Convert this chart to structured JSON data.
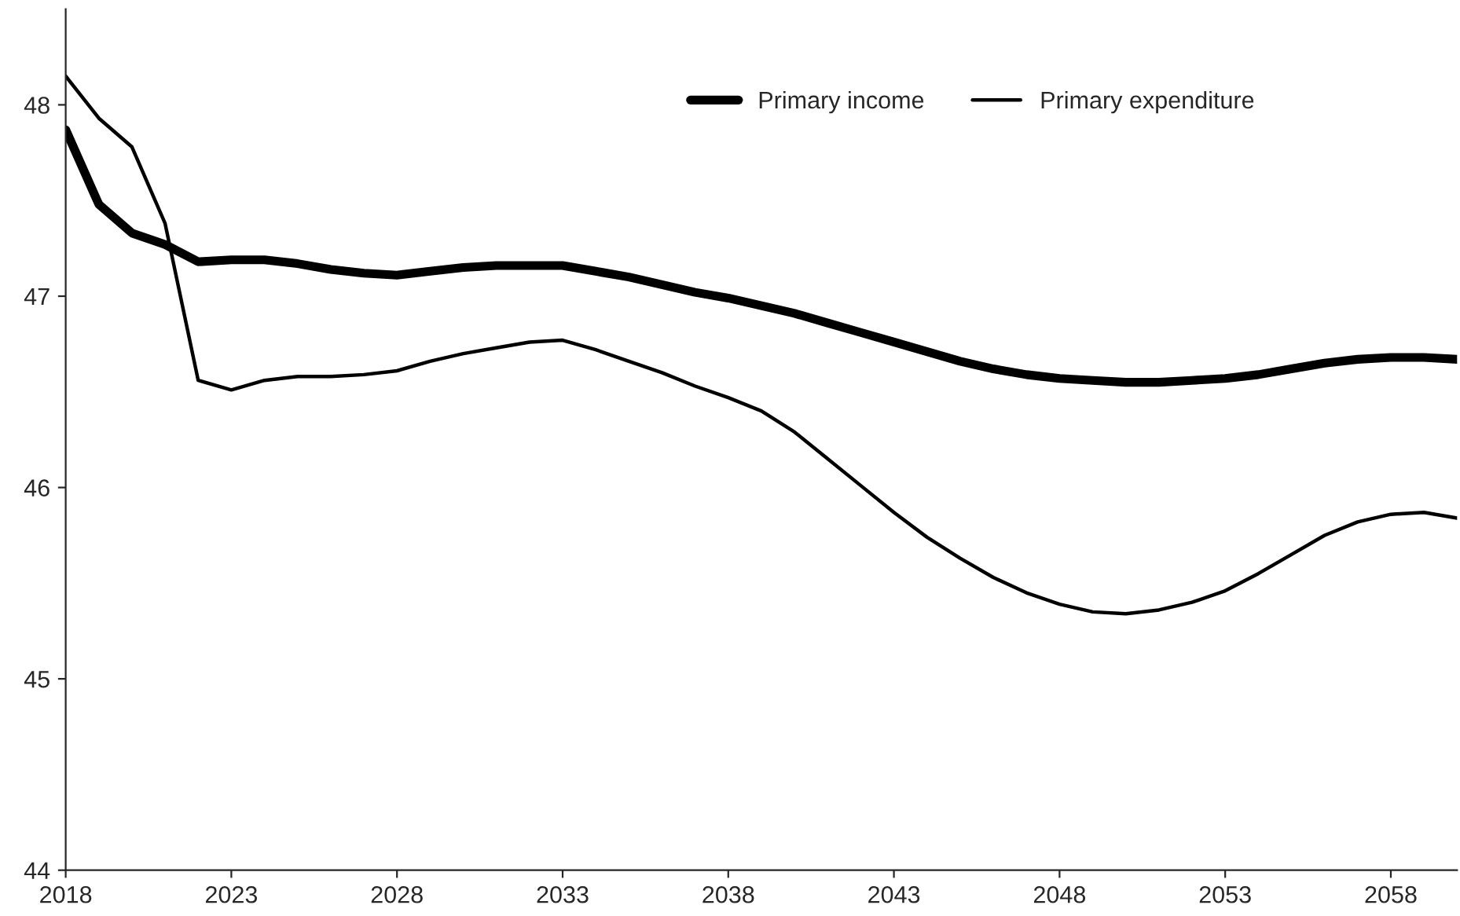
{
  "chart_data": {
    "type": "line",
    "x": [
      2018,
      2019,
      2020,
      2021,
      2022,
      2023,
      2024,
      2025,
      2026,
      2027,
      2028,
      2029,
      2030,
      2031,
      2032,
      2033,
      2034,
      2035,
      2036,
      2037,
      2038,
      2039,
      2040,
      2041,
      2042,
      2043,
      2044,
      2045,
      2046,
      2047,
      2048,
      2049,
      2050,
      2051,
      2052,
      2053,
      2054,
      2055,
      2056,
      2057,
      2058,
      2059,
      2060
    ],
    "series": [
      {
        "name": "Primary income",
        "color": "#000000",
        "values": [
          47.87,
          47.48,
          47.33,
          47.27,
          47.18,
          47.19,
          47.19,
          47.17,
          47.14,
          47.12,
          47.11,
          47.13,
          47.15,
          47.16,
          47.16,
          47.16,
          47.13,
          47.1,
          47.06,
          47.02,
          46.99,
          46.95,
          46.91,
          46.86,
          46.81,
          46.76,
          46.71,
          46.66,
          46.62,
          46.59,
          46.57,
          46.56,
          46.55,
          46.55,
          46.56,
          46.57,
          46.59,
          46.62,
          46.65,
          46.67,
          46.68,
          46.68,
          46.67
        ]
      },
      {
        "name": "Primary expenditure",
        "color": "#000000",
        "values": [
          48.15,
          47.93,
          47.78,
          47.38,
          46.56,
          46.51,
          46.56,
          46.58,
          46.58,
          46.59,
          46.61,
          46.66,
          46.7,
          46.73,
          46.76,
          46.77,
          46.72,
          46.66,
          46.6,
          46.53,
          46.47,
          46.4,
          46.29,
          46.15,
          46.01,
          45.87,
          45.74,
          45.63,
          45.53,
          45.45,
          45.39,
          45.35,
          45.34,
          45.36,
          45.4,
          45.46,
          45.55,
          45.65,
          45.75,
          45.82,
          45.86,
          45.87,
          45.84
        ]
      }
    ],
    "xlim": [
      2018,
      2060
    ],
    "xticks": [
      2018,
      2023,
      2028,
      2033,
      2038,
      2043,
      2048,
      2053,
      2058
    ],
    "ylim": [
      44,
      48.5
    ],
    "yticks": [
      44,
      45,
      46,
      47,
      48
    ],
    "grid": false,
    "legend": "top right",
    "marker": "none",
    "line_style": "solid"
  }
}
